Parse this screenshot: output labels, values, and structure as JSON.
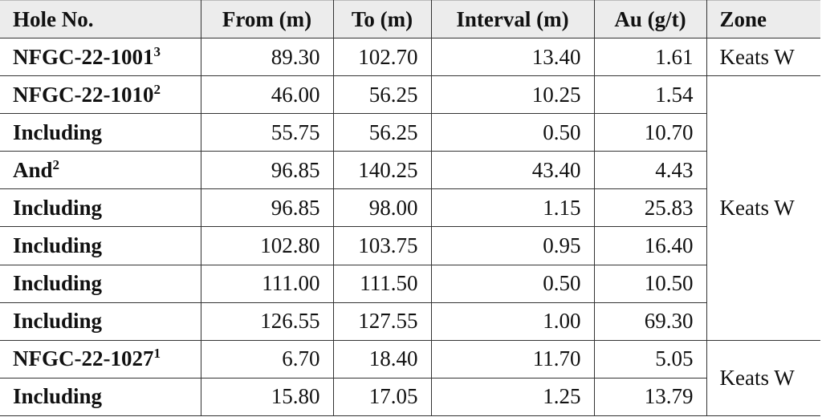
{
  "headers": [
    "Hole No.",
    "From (m)",
    "To (m)",
    "Interval (m)",
    "Au (g/t)",
    "Zone"
  ],
  "rows": [
    {
      "hole": "NFGC-22-1001",
      "sup": "3",
      "from": "89.30",
      "to": "102.70",
      "interval": "13.40",
      "au": "1.61"
    },
    {
      "hole": "NFGC-22-1010",
      "sup": "2",
      "from": "46.00",
      "to": "56.25",
      "interval": "10.25",
      "au": "1.54"
    },
    {
      "hole": "Including",
      "sup": "",
      "from": "55.75",
      "to": "56.25",
      "interval": "0.50",
      "au": "10.70"
    },
    {
      "hole": "And",
      "sup": "2",
      "from": "96.85",
      "to": "140.25",
      "interval": "43.40",
      "au": "4.43"
    },
    {
      "hole": "Including",
      "sup": "",
      "from": "96.85",
      "to": "98.00",
      "interval": "1.15",
      "au": "25.83"
    },
    {
      "hole": "Including",
      "sup": "",
      "from": "102.80",
      "to": "103.75",
      "interval": "0.95",
      "au": "16.40"
    },
    {
      "hole": "Including",
      "sup": "",
      "from": "111.00",
      "to": "111.50",
      "interval": "0.50",
      "au": "10.50"
    },
    {
      "hole": "Including",
      "sup": "",
      "from": "126.55",
      "to": "127.55",
      "interval": "1.00",
      "au": "69.30"
    },
    {
      "hole": "NFGC-22-1027",
      "sup": "1",
      "from": "6.70",
      "to": "18.40",
      "interval": "11.70",
      "au": "5.05"
    },
    {
      "hole": "Including",
      "sup": "",
      "from": "15.80",
      "to": "17.05",
      "interval": "1.25",
      "au": "13.79"
    }
  ],
  "zones": [
    "Keats W",
    "Keats W",
    "Keats W"
  ]
}
